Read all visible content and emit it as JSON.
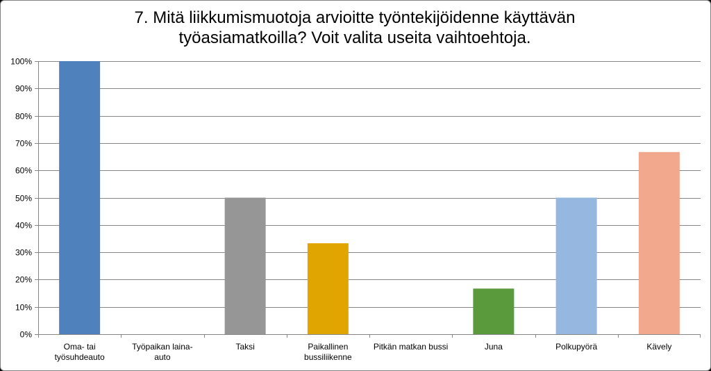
{
  "chart_data": {
    "type": "bar",
    "title_lines": [
      "7. Mitä liikkumismuotoja arvioitte työntekijöidenne käyttävän",
      "työasiamatkoilla? Voit valita useita vaihtoehtoja."
    ],
    "categories": [
      [
        "Oma- tai",
        "työsuhdeauto"
      ],
      [
        "Työpaikan laina-",
        "auto"
      ],
      [
        "Taksi"
      ],
      [
        "Paikallinen",
        "bussiliikenne"
      ],
      [
        "Pitkän matkan bussi"
      ],
      [
        "Juna"
      ],
      [
        "Polkupyörä"
      ],
      [
        "Kävely"
      ]
    ],
    "values": [
      100,
      0,
      50,
      33.3,
      0,
      16.7,
      50,
      66.7
    ],
    "colors": [
      "#4f81bd",
      "#4f81bd",
      "#969696",
      "#e1a500",
      "#4f81bd",
      "#5a9a3c",
      "#95b7e0",
      "#f2a88c"
    ],
    "yticks": [
      "0%",
      "10%",
      "20%",
      "30%",
      "40%",
      "50%",
      "60%",
      "70%",
      "80%",
      "90%",
      "100%"
    ],
    "ylim": [
      0,
      100
    ],
    "grid": true,
    "legend": "none"
  }
}
